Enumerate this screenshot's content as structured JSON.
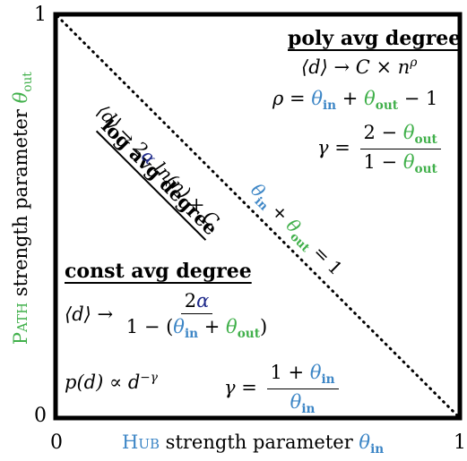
{
  "axes": {
    "x_label_prefix": "Hub",
    "x_label_text": "strength parameter",
    "x_label_symbol": "θ",
    "x_label_subscript": "in",
    "y_label_prefix": "Path",
    "y_label_text": "strength parameter",
    "y_label_symbol": "θ",
    "y_label_subscript": "out",
    "x_tick_min": "0",
    "x_tick_max": "1",
    "y_tick_min": "0",
    "y_tick_max": "1"
  },
  "poly": {
    "heading": "poly avg degree",
    "limit_lhs": "⟨d⟩ → C × n",
    "limit_exp": "ρ",
    "rho_lhs": "ρ =",
    "theta": "θ",
    "in": "in",
    "out": "out",
    "plus": "+",
    "minus_one": "− 1",
    "gamma_lhs": "γ =",
    "gamma_num": "2 −",
    "gamma_den": "1 −"
  },
  "log": {
    "heading": "log avg degree",
    "limit_a": "⟨d⟩ → 2",
    "alpha": "α",
    "limit_b": "ln(n) × C"
  },
  "boundary": {
    "theta": "θ",
    "in": "in",
    "times": "+",
    "out": "out",
    "equals": "= 1"
  },
  "const": {
    "heading": "const avg degree",
    "limit_lhs": "⟨d⟩ →",
    "num_two": "2",
    "alpha": "α",
    "den_prefix": "1 − (",
    "plus": "+",
    "den_suffix": ")",
    "theta": "θ",
    "in": "in",
    "out": "out",
    "pd": "p(d) ∝ d",
    "pd_exp": "−γ",
    "gamma_lhs": "γ =",
    "gamma_num_prefix": "1 +"
  },
  "colors": {
    "in": "#3d86c6",
    "out": "#41b04b",
    "alpha": "#1f2a8a",
    "frame": "#000000"
  }
}
